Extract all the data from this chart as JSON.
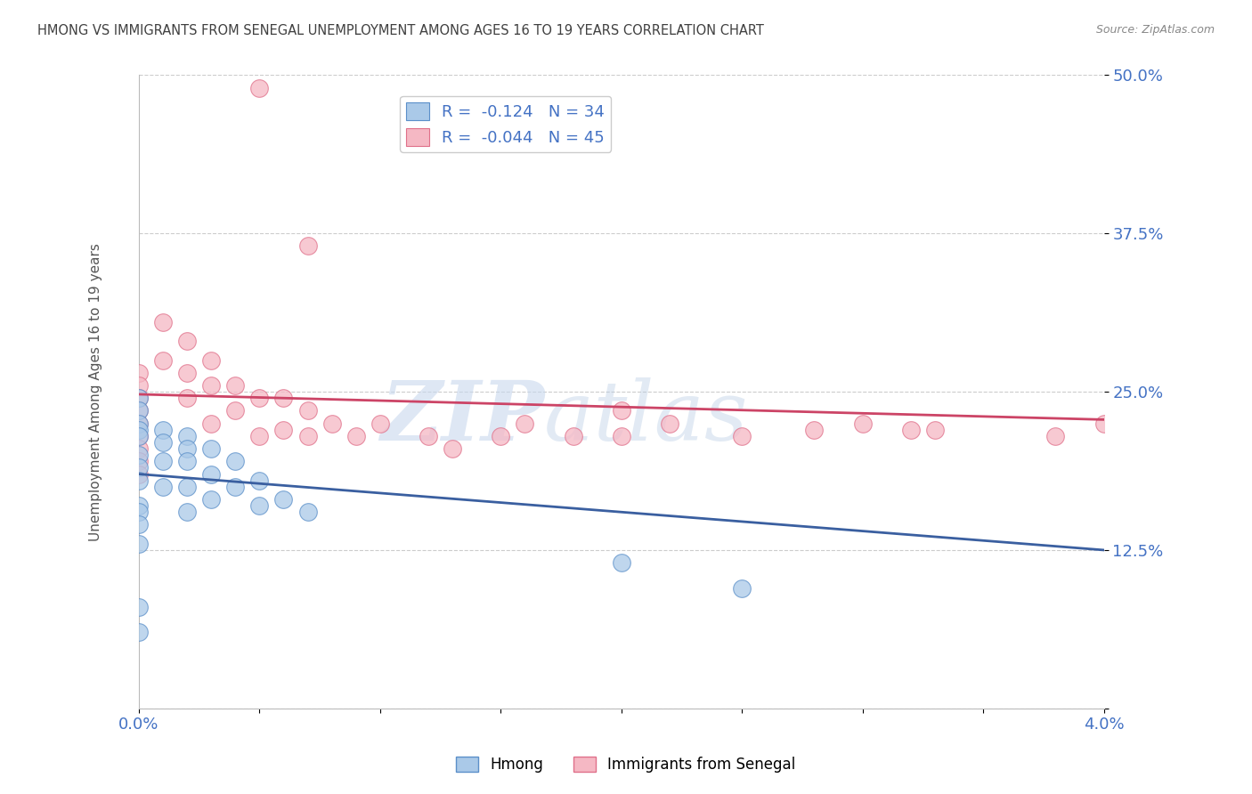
{
  "title": "HMONG VS IMMIGRANTS FROM SENEGAL UNEMPLOYMENT AMONG AGES 16 TO 19 YEARS CORRELATION CHART",
  "source_text": "Source: ZipAtlas.com",
  "ylabel": "Unemployment Among Ages 16 to 19 years",
  "xlim": [
    0.0,
    0.04
  ],
  "ylim": [
    0.0,
    0.5
  ],
  "xticks": [
    0.0,
    0.005,
    0.01,
    0.015,
    0.02,
    0.025,
    0.03,
    0.035,
    0.04
  ],
  "xticklabels": [
    "0.0%",
    "",
    "",
    "",
    "",
    "",
    "",
    "",
    "4.0%"
  ],
  "yticks": [
    0.0,
    0.125,
    0.25,
    0.375,
    0.5
  ],
  "yticklabels": [
    "",
    "12.5%",
    "25.0%",
    "37.5%",
    "50.0%"
  ],
  "grid_color": "#cccccc",
  "background_color": "#ffffff",
  "watermark_zip": "ZIP",
  "watermark_atlas": "atlas",
  "legend_R_blue": "-0.124",
  "legend_N_blue": "34",
  "legend_R_pink": "-0.044",
  "legend_N_pink": "45",
  "blue_fill": "#aac9e8",
  "pink_fill": "#f5b8c4",
  "blue_edge": "#5b8fc9",
  "pink_edge": "#e0708a",
  "line_blue": "#3a5fa0",
  "line_pink": "#cc4466",
  "title_color": "#404040",
  "tick_color": "#4472c4",
  "hmong_x": [
    0.0,
    0.0,
    0.0,
    0.0,
    0.0,
    0.0,
    0.0,
    0.0,
    0.0,
    0.0,
    0.0,
    0.0,
    0.0,
    0.0,
    0.001,
    0.001,
    0.001,
    0.001,
    0.002,
    0.002,
    0.002,
    0.002,
    0.002,
    0.003,
    0.003,
    0.003,
    0.004,
    0.004,
    0.005,
    0.005,
    0.006,
    0.007,
    0.02,
    0.025
  ],
  "hmong_y": [
    0.245,
    0.235,
    0.225,
    0.22,
    0.215,
    0.2,
    0.19,
    0.18,
    0.16,
    0.155,
    0.145,
    0.13,
    0.08,
    0.06,
    0.22,
    0.21,
    0.195,
    0.175,
    0.215,
    0.205,
    0.195,
    0.175,
    0.155,
    0.205,
    0.185,
    0.165,
    0.195,
    0.175,
    0.18,
    0.16,
    0.165,
    0.155,
    0.115,
    0.095
  ],
  "senegal_x": [
    0.0,
    0.0,
    0.0,
    0.0,
    0.0,
    0.0,
    0.0,
    0.0,
    0.0,
    0.001,
    0.001,
    0.002,
    0.002,
    0.002,
    0.003,
    0.003,
    0.003,
    0.004,
    0.004,
    0.005,
    0.005,
    0.006,
    0.006,
    0.007,
    0.007,
    0.008,
    0.009,
    0.01,
    0.012,
    0.013,
    0.015,
    0.016,
    0.018,
    0.02,
    0.02,
    0.022,
    0.025,
    0.028,
    0.03,
    0.032,
    0.033,
    0.038,
    0.04,
    0.005,
    0.007
  ],
  "senegal_y": [
    0.265,
    0.255,
    0.245,
    0.235,
    0.225,
    0.215,
    0.205,
    0.195,
    0.185,
    0.305,
    0.275,
    0.29,
    0.265,
    0.245,
    0.275,
    0.255,
    0.225,
    0.255,
    0.235,
    0.245,
    0.215,
    0.245,
    0.22,
    0.235,
    0.215,
    0.225,
    0.215,
    0.225,
    0.215,
    0.205,
    0.215,
    0.225,
    0.215,
    0.235,
    0.215,
    0.225,
    0.215,
    0.22,
    0.225,
    0.22,
    0.22,
    0.215,
    0.225,
    0.49,
    0.365
  ],
  "blue_line_x0": 0.0,
  "blue_line_x1": 0.04,
  "blue_line_y0": 0.185,
  "blue_line_y1": 0.125,
  "pink_line_x0": 0.0,
  "pink_line_x1": 0.04,
  "pink_line_y0": 0.248,
  "pink_line_y1": 0.228
}
